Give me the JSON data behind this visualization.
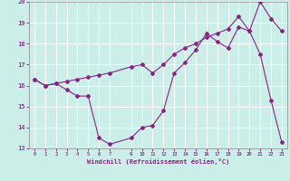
{
  "xlabel": "Windchill (Refroidissement éolien,°C)",
  "bg_color": "#cceee8",
  "line_color": "#882288",
  "grid_color": "#ffffff",
  "xlim": [
    -0.5,
    23.5
  ],
  "ylim": [
    13,
    20
  ],
  "xticks": [
    0,
    1,
    2,
    3,
    4,
    5,
    6,
    7,
    9,
    10,
    11,
    12,
    13,
    14,
    15,
    16,
    17,
    18,
    19,
    20,
    21,
    22,
    23
  ],
  "yticks": [
    13,
    14,
    15,
    16,
    17,
    18,
    19,
    20
  ],
  "line1_x": [
    0,
    1,
    2,
    3,
    4,
    5,
    6,
    7,
    9,
    10,
    11,
    12,
    13,
    14,
    15,
    16,
    17,
    18,
    19,
    20,
    21,
    22,
    23
  ],
  "line1_y": [
    16.3,
    16.0,
    16.1,
    15.8,
    15.5,
    15.5,
    13.5,
    13.2,
    13.5,
    14.0,
    14.1,
    14.8,
    16.6,
    17.1,
    17.7,
    18.5,
    18.1,
    17.8,
    18.8,
    18.6,
    17.5,
    15.3,
    13.3
  ],
  "line2_x": [
    0,
    1,
    2,
    3,
    4,
    5,
    6,
    7,
    9,
    10,
    11,
    12,
    13,
    14,
    15,
    16,
    17,
    18,
    19,
    20,
    21,
    22,
    23
  ],
  "line2_y": [
    16.3,
    16.0,
    16.1,
    16.2,
    16.3,
    16.4,
    16.5,
    16.6,
    16.9,
    17.0,
    16.6,
    17.0,
    17.5,
    17.8,
    18.0,
    18.3,
    18.5,
    18.7,
    19.3,
    18.6,
    20.0,
    19.2,
    18.6
  ]
}
